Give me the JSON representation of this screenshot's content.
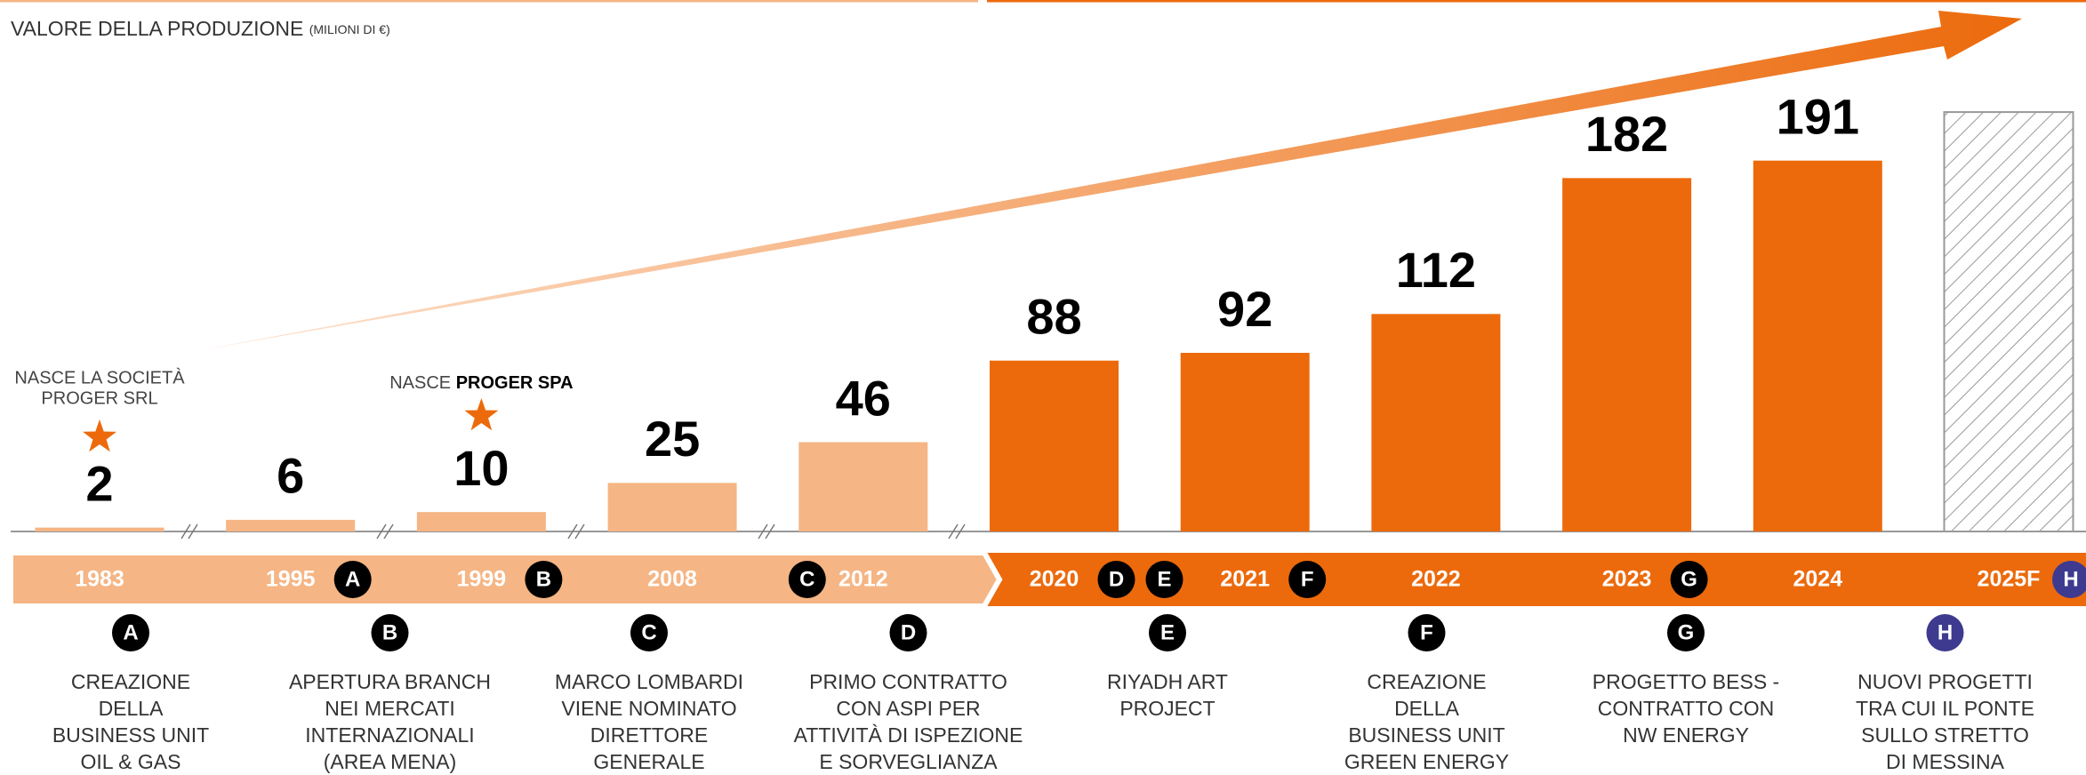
{
  "chart_data": {
    "type": "bar",
    "title": "VALORE DELLA PRODUZIONE",
    "subtitle": "(MILIONI DI €)",
    "categories": [
      "1983",
      "1995",
      "1999",
      "2008",
      "2012",
      "2020",
      "2021",
      "2022",
      "2023",
      "2024",
      "2025F"
    ],
    "values": [
      2,
      6,
      10,
      25,
      46,
      88,
      92,
      112,
      182,
      191,
      216
    ],
    "value_labels": [
      "2",
      "6",
      "10",
      "25",
      "46",
      "88",
      "92",
      "112",
      "182",
      "191",
      null
    ],
    "colors": [
      "#f5b584",
      "#f5b584",
      "#f5b584",
      "#f5b584",
      "#f5b584",
      "#ec6a0c",
      "#ec6a0c",
      "#ec6a0c",
      "#ec6a0c",
      "#ec6a0c",
      "hatched"
    ],
    "ylim": [
      0,
      230
    ],
    "markers": [
      {
        "category": "1995",
        "letter": "A"
      },
      {
        "category": "1999",
        "letter": "B"
      },
      {
        "category": "2012",
        "letter": "C",
        "side": "before"
      },
      {
        "category": "2020",
        "letter": "D"
      },
      {
        "category": "2020",
        "letter": "E"
      },
      {
        "category": "2021",
        "letter": "F"
      },
      {
        "category": "2023",
        "letter": "G"
      },
      {
        "category": "2025F",
        "letter": "H"
      }
    ],
    "annotations": [
      {
        "category": "1983",
        "lines": [
          "NASCE LA SOCIETÀ",
          "PROGER SRL"
        ]
      },
      {
        "category": "1999",
        "text": "NASCE ",
        "bold": "PROGER SPA"
      }
    ],
    "events": [
      {
        "letter": "A",
        "color": "#000000",
        "lines": [
          "CREAZIONE",
          "DELLA",
          "BUSINESS UNIT",
          "OIL & GAS"
        ]
      },
      {
        "letter": "B",
        "color": "#000000",
        "lines": [
          "APERTURA BRANCH",
          "NEI MERCATI",
          "INTERNAZIONALI",
          "(AREA MENA)"
        ]
      },
      {
        "letter": "C",
        "color": "#000000",
        "lines": [
          "MARCO LOMBARDI",
          "VIENE NOMINATO",
          "DIRETTORE",
          "GENERALE"
        ]
      },
      {
        "letter": "D",
        "color": "#000000",
        "lines": [
          "PRIMO CONTRATTO",
          "CON ASPI PER",
          "ATTIVITÀ DI ISPEZIONE",
          "E SORVEGLIANZA"
        ]
      },
      {
        "letter": "E",
        "color": "#000000",
        "lines": [
          "RIYADH ART",
          "PROJECT"
        ]
      },
      {
        "letter": "F",
        "color": "#000000",
        "lines": [
          "CREAZIONE",
          "DELLA",
          "BUSINESS UNIT",
          "GREEN ENERGY"
        ]
      },
      {
        "letter": "G",
        "color": "#000000",
        "lines": [
          "PROGETTO BESS -",
          "CONTRATTO CON",
          "NW ENERGY"
        ]
      },
      {
        "letter": "H",
        "color": "#3d3a8f",
        "lines": [
          "NUOVI PROGETTI",
          "TRA CUI IL PONTE",
          "SULLO STRETTO",
          "DI MESSINA"
        ]
      }
    ]
  }
}
